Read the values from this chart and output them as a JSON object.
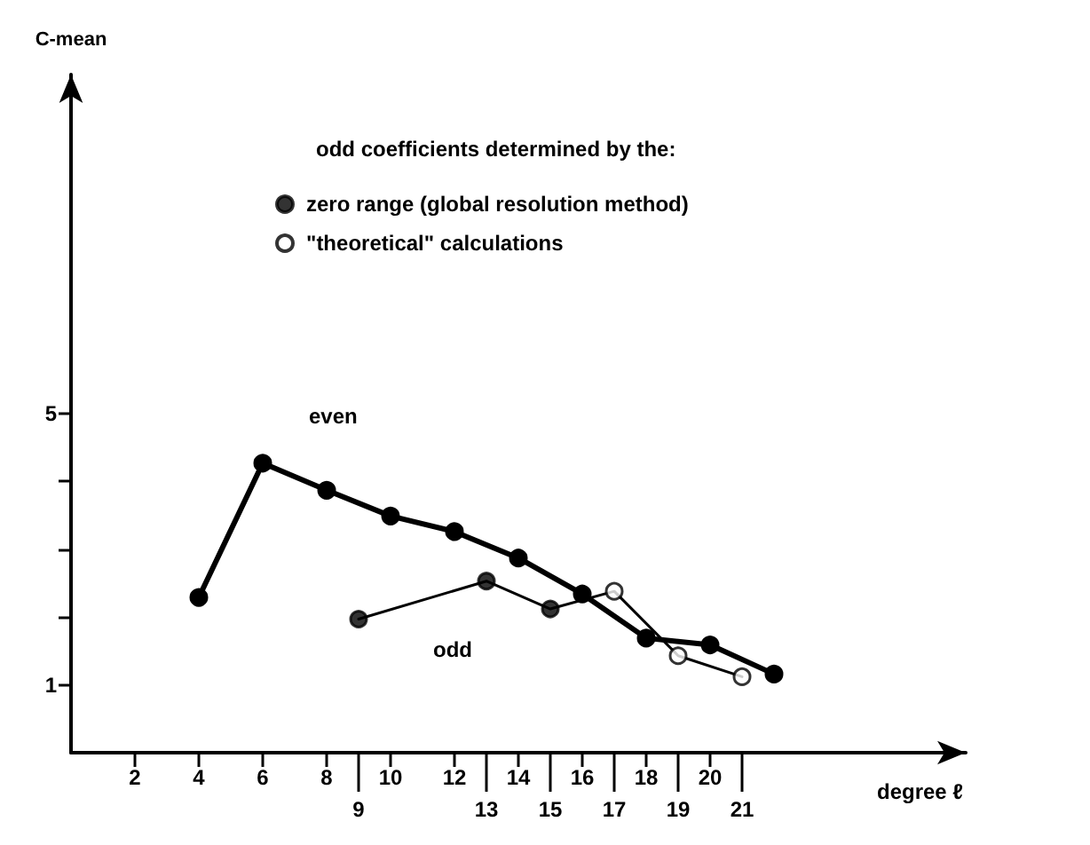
{
  "chart_data": {
    "type": "line",
    "xlabel": "degree ℓ",
    "ylabel": "C-mean",
    "legend_title": "odd coefficients determined by the:",
    "xlim": [
      0,
      28
    ],
    "ylim": [
      0,
      10
    ],
    "xticks": [
      2,
      4,
      6,
      8,
      10,
      12,
      14,
      16,
      18,
      20
    ],
    "x2lim": [
      0,
      28
    ],
    "x2ticks": [
      9,
      13,
      15,
      17,
      19,
      21
    ],
    "yticks": [
      1,
      {
        "value": 2,
        "label": null
      },
      {
        "value": 3,
        "label": null
      },
      {
        "value": 4,
        "label": null
      },
      5
    ],
    "grid": false,
    "legend": "top",
    "line_style": "solid",
    "series": [
      {
        "name": "even",
        "type": "line",
        "marker": "circle",
        "color": "#000000",
        "x": [
          4,
          6,
          8,
          10,
          12,
          14,
          16,
          18,
          20,
          22
        ],
        "values": [
          2.29,
          4.27,
          3.87,
          3.49,
          3.26,
          2.87,
          2.34,
          1.69,
          1.59,
          1.16
        ]
      },
      {
        "name": "odd",
        "type": "line",
        "marker": "none",
        "color": "#000000",
        "x": [
          9,
          13,
          15,
          17,
          19,
          21
        ],
        "values": [
          1.97,
          2.53,
          2.12,
          2.38,
          1.43,
          1.12
        ]
      },
      {
        "name": "zero range (global resolution method)",
        "type": "scatter",
        "marker": "circle",
        "color": "#000000",
        "x": [
          9,
          13,
          15
        ],
        "values": [
          1.97,
          2.53,
          2.12
        ]
      },
      {
        "name": "\"theoretical\" calculations",
        "type": "scatter",
        "marker": "circle",
        "color": "#ffffff",
        "x": [
          17,
          19,
          21
        ],
        "values": [
          2.38,
          1.43,
          1.12
        ]
      }
    ]
  }
}
